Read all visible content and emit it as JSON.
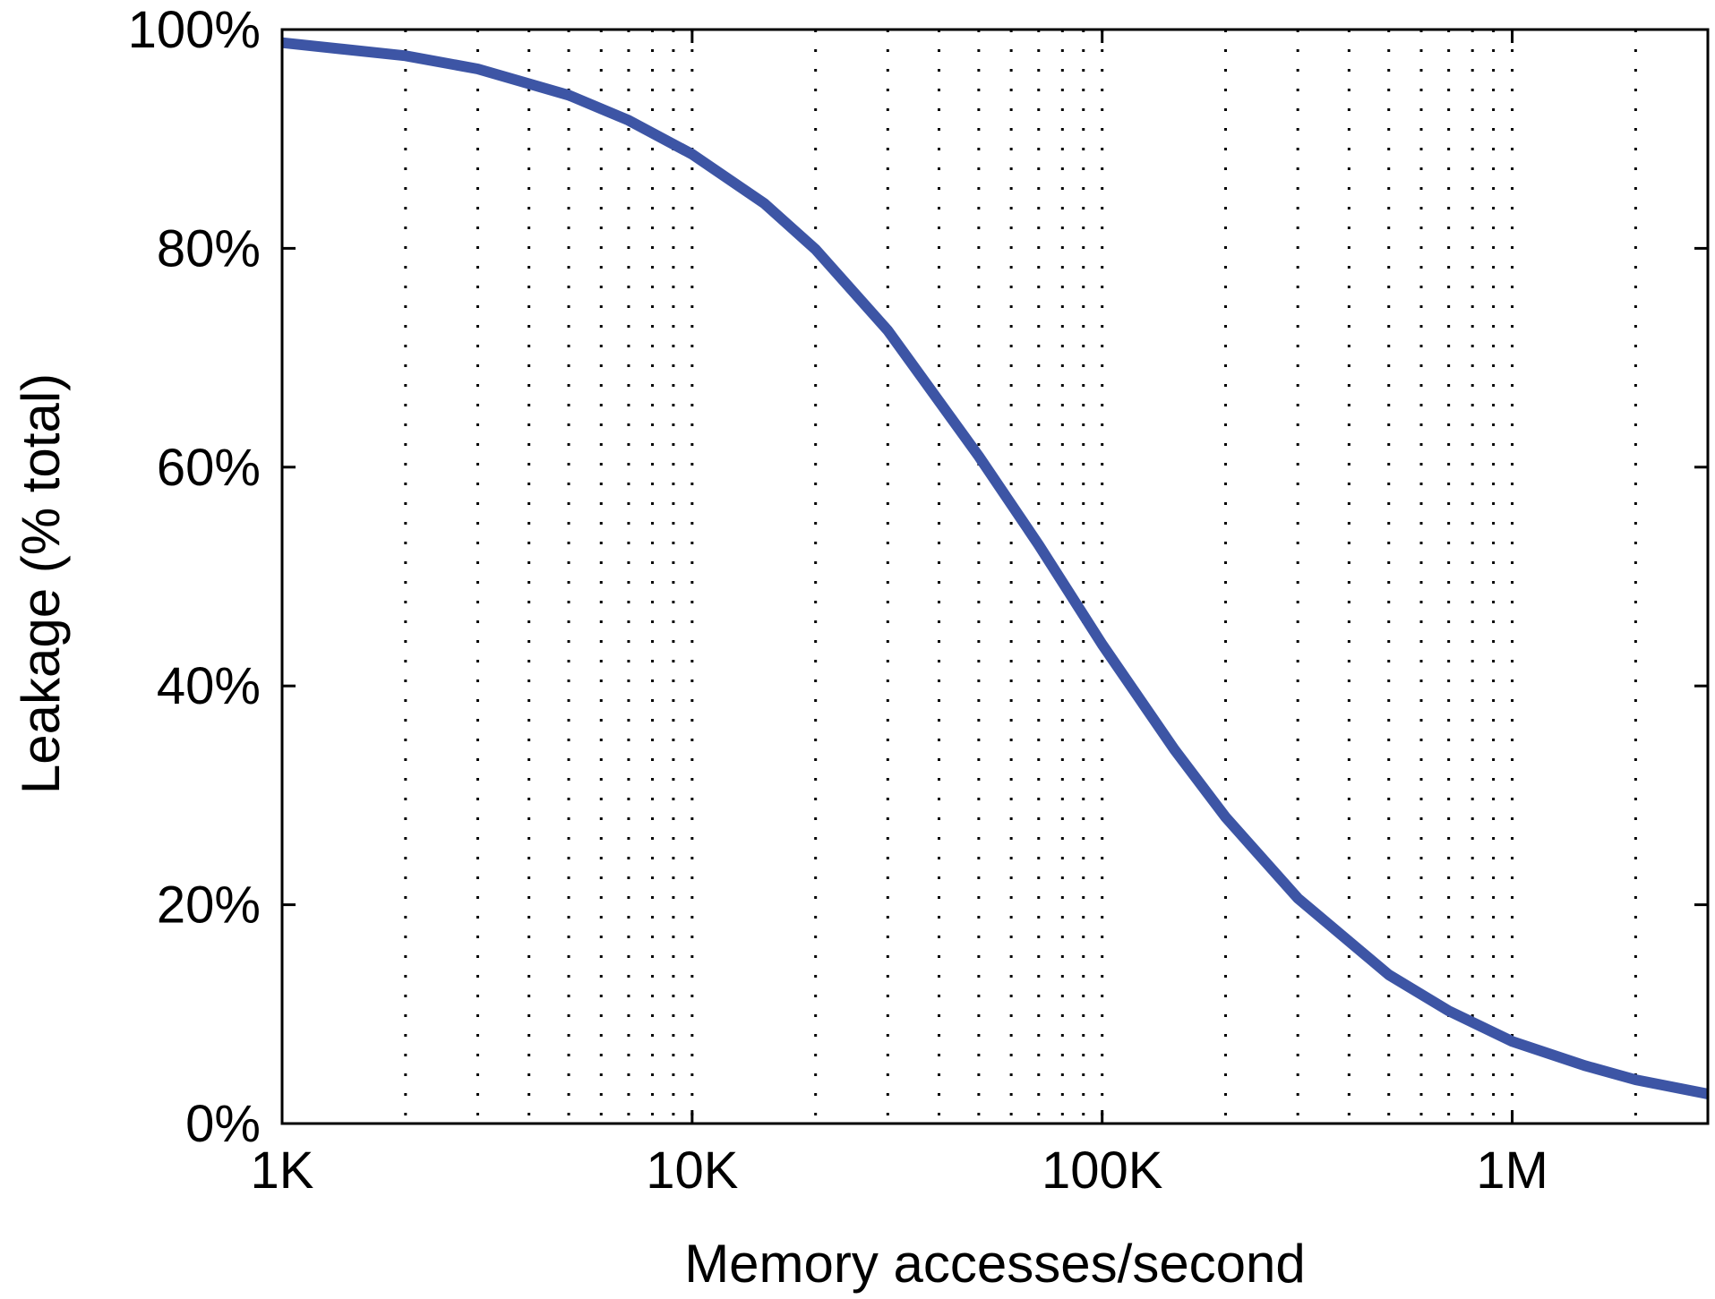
{
  "chart_data": {
    "type": "line",
    "xlabel": "Memory accesses/second",
    "ylabel": "Leakage (% total)",
    "x_scale": "log",
    "xlim": [
      1000,
      3000000
    ],
    "ylim": [
      0,
      100
    ],
    "grid": {
      "x_minor_dotted": true,
      "y": false
    },
    "x_ticks": [
      {
        "value": 1000,
        "label": "1K"
      },
      {
        "value": 10000,
        "label": "10K"
      },
      {
        "value": 100000,
        "label": "100K"
      },
      {
        "value": 1000000,
        "label": "1M"
      }
    ],
    "y_ticks": [
      {
        "value": 0,
        "label": "0%"
      },
      {
        "value": 20,
        "label": "20%"
      },
      {
        "value": 40,
        "label": "40%"
      },
      {
        "value": 60,
        "label": "60%"
      },
      {
        "value": 80,
        "label": "80%"
      },
      {
        "value": 100,
        "label": "100%"
      }
    ],
    "series": [
      {
        "color": "#3d55a5",
        "x": [
          1000,
          2000,
          3000,
          5000,
          7000,
          10000,
          15000,
          20000,
          30000,
          50000,
          70000,
          100000,
          150000,
          200000,
          300000,
          500000,
          700000,
          1000000,
          1500000,
          2000000,
          3000000
        ],
        "y": [
          98.8,
          97.6,
          96.4,
          94.0,
          91.7,
          88.6,
          84.1,
          79.9,
          72.5,
          61.0,
          52.9,
          43.8,
          34.2,
          28.0,
          20.6,
          13.6,
          10.3,
          7.5,
          5.3,
          4.0,
          2.7
        ]
      }
    ]
  }
}
